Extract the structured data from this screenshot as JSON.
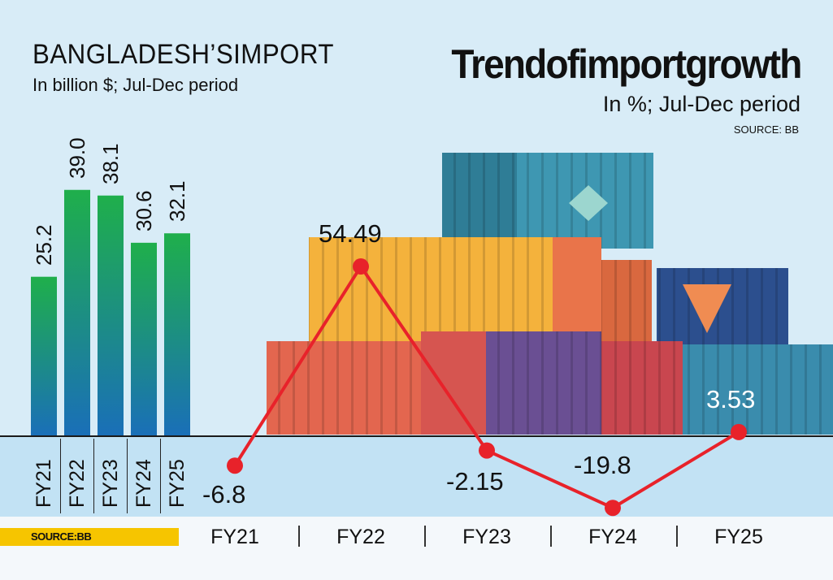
{
  "left_panel": {
    "title": "BANGLADESH’SIMPORT",
    "subtitle": "In billion $; Jul-Dec period",
    "source": "SOURCE:BB"
  },
  "right_panel": {
    "title": "Trendofimportgrowth",
    "subtitle": "In %; Jul-Dec period",
    "source": "SOURCE: BB"
  },
  "colors": {
    "background": "#d8ecf7",
    "bar_top": "#1faf4b",
    "bar_bottom": "#1a6fb8",
    "line": "#e8222a",
    "source_bar": "#f6c500"
  },
  "illustration": {
    "icon": "stacked-shipping-containers"
  },
  "chart_data": [
    {
      "type": "bar",
      "categories": [
        "FY21",
        "FY22",
        "FY23",
        "FY24",
        "FY25"
      ],
      "values": [
        25.2,
        39.0,
        38.1,
        30.6,
        32.1
      ],
      "value_labels": [
        "25.2",
        "39.0",
        "38.1",
        "30.6",
        "32.1"
      ],
      "ylim": [
        0,
        50
      ]
    },
    {
      "type": "line",
      "categories": [
        "FY21",
        "FY22",
        "FY23",
        "FY24",
        "FY25"
      ],
      "values": [
        -6.8,
        54.49,
        -2.15,
        -19.8,
        3.53
      ],
      "value_labels": [
        "-6.8",
        "54.49",
        "-2.15",
        "-19.8",
        "3.53"
      ],
      "ylim": [
        -20,
        60
      ]
    }
  ]
}
